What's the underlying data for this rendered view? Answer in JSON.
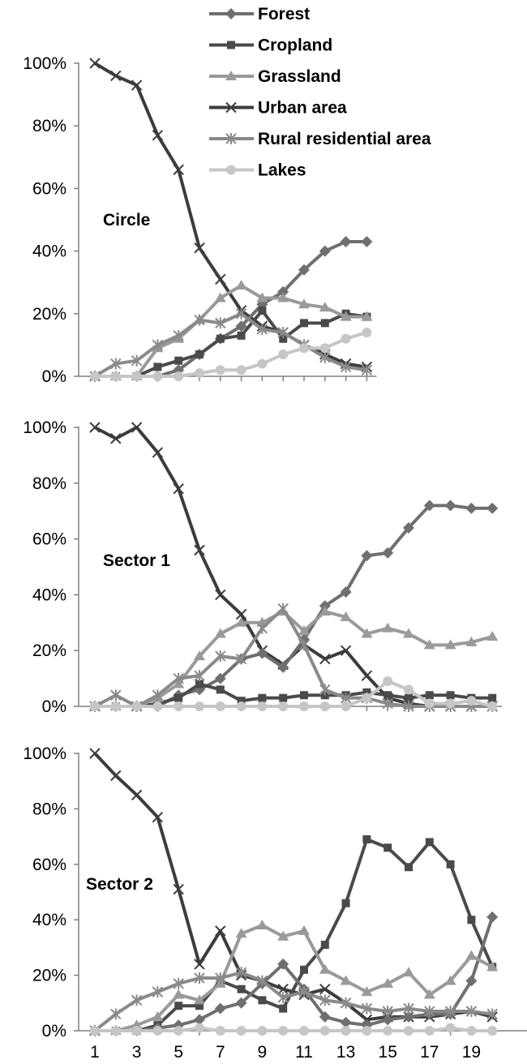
{
  "legend": {
    "items": [
      {
        "label": "Forest",
        "color": "#6f6f6f",
        "marker": "diamond"
      },
      {
        "label": "Cropland",
        "color": "#4a4a4a",
        "marker": "square"
      },
      {
        "label": "Grassland",
        "color": "#9a9a9a",
        "marker": "triangle"
      },
      {
        "label": "Urban area",
        "color": "#3c3c3c",
        "marker": "x"
      },
      {
        "label": "Rural residential area",
        "color": "#8a8a8a",
        "marker": "asterisk"
      },
      {
        "label": "Lakes",
        "color": "#c6c6c6",
        "marker": "circle"
      }
    ]
  },
  "chart_data": [
    {
      "type": "line",
      "panel_label": "Circle",
      "x": [
        1,
        2,
        3,
        4,
        5,
        6,
        7,
        8,
        9,
        10,
        11,
        12,
        13,
        14
      ],
      "x_tick_labels": [],
      "ylim": [
        0,
        100
      ],
      "y_tick_labels": [
        "0%",
        "20%",
        "40%",
        "60%",
        "80%",
        "100%"
      ],
      "series": [
        {
          "name": "Urban area",
          "values": [
            100,
            96,
            93,
            77,
            66,
            41,
            31,
            21,
            16,
            14,
            10,
            7,
            4,
            3
          ]
        },
        {
          "name": "Forest",
          "values": [
            0,
            0,
            0,
            0,
            2,
            7,
            12,
            16,
            23,
            27,
            34,
            40,
            43,
            43
          ]
        },
        {
          "name": "Cropland",
          "values": [
            0,
            0,
            0,
            3,
            5,
            7,
            12,
            13,
            21,
            12,
            17,
            17,
            20,
            19
          ]
        },
        {
          "name": "Grassland",
          "values": [
            0,
            0,
            0,
            9,
            12,
            18,
            25,
            29,
            25,
            25,
            23,
            22,
            19,
            19
          ]
        },
        {
          "name": "Rural residential area",
          "values": [
            0,
            4,
            5,
            10,
            13,
            18,
            17,
            20,
            15,
            14,
            10,
            6,
            3,
            2
          ]
        },
        {
          "name": "Lakes",
          "values": [
            0,
            0,
            0,
            0,
            0,
            1,
            2,
            2,
            4,
            7,
            9,
            9,
            12,
            14
          ]
        }
      ]
    },
    {
      "type": "line",
      "panel_label": "Sector 1",
      "x": [
        1,
        2,
        3,
        4,
        5,
        6,
        7,
        8,
        9,
        10,
        11,
        12,
        13,
        14,
        15,
        16,
        17,
        18,
        19,
        20
      ],
      "x_tick_labels": [],
      "ylim": [
        0,
        100
      ],
      "y_tick_labels": [
        "0%",
        "20%",
        "40%",
        "60%",
        "80%",
        "100%"
      ],
      "series": [
        {
          "name": "Urban area",
          "values": [
            100,
            96,
            100,
            91,
            78,
            56,
            40,
            33,
            20,
            15,
            22,
            17,
            20,
            11,
            3,
            1,
            0,
            0,
            0,
            0
          ]
        },
        {
          "name": "Forest",
          "values": [
            0,
            0,
            0,
            0,
            4,
            6,
            10,
            17,
            19,
            14,
            24,
            36,
            41,
            54,
            55,
            64,
            72,
            72,
            71,
            71
          ]
        },
        {
          "name": "Cropland",
          "values": [
            0,
            0,
            0,
            1,
            3,
            8,
            6,
            2,
            3,
            3,
            4,
            4,
            4,
            5,
            4,
            3,
            4,
            4,
            3,
            3
          ]
        },
        {
          "name": "Grassland",
          "values": [
            0,
            0,
            0,
            3,
            8,
            18,
            26,
            30,
            30,
            34,
            27,
            34,
            32,
            26,
            28,
            26,
            22,
            22,
            23,
            25
          ]
        },
        {
          "name": "Rural residential area",
          "values": [
            0,
            4,
            0,
            4,
            10,
            11,
            18,
            17,
            28,
            35,
            22,
            6,
            3,
            3,
            1,
            0,
            0,
            0,
            0,
            0
          ]
        },
        {
          "name": "Lakes",
          "values": [
            0,
            0,
            0,
            0,
            0,
            0,
            0,
            0,
            0,
            0,
            0,
            0,
            0,
            3,
            9,
            6,
            1,
            1,
            2,
            0
          ]
        }
      ]
    },
    {
      "type": "line",
      "panel_label": "Sector 2",
      "x": [
        1,
        2,
        3,
        4,
        5,
        6,
        7,
        8,
        9,
        10,
        11,
        12,
        13,
        14,
        15,
        16,
        17,
        18,
        19,
        20
      ],
      "x_tick_labels": [
        "1",
        "3",
        "5",
        "7",
        "9",
        "11",
        "13",
        "15",
        "17",
        "19"
      ],
      "ylim": [
        0,
        100
      ],
      "y_tick_labels": [
        "0%",
        "20%",
        "40%",
        "60%",
        "80%",
        "100%"
      ],
      "series": [
        {
          "name": "Urban area",
          "values": [
            100,
            92,
            85,
            77,
            51,
            24,
            36,
            20,
            18,
            15,
            13,
            15,
            10,
            4,
            5,
            5,
            5,
            6,
            7,
            5
          ]
        },
        {
          "name": "Cropland",
          "values": [
            0,
            0,
            0,
            2,
            9,
            9,
            18,
            15,
            11,
            8,
            22,
            31,
            46,
            69,
            66,
            59,
            68,
            60,
            40,
            23
          ]
        },
        {
          "name": "Forest",
          "values": [
            0,
            0,
            0,
            1,
            2,
            4,
            8,
            10,
            17,
            24,
            15,
            5,
            3,
            2,
            4,
            5,
            6,
            6,
            18,
            41
          ]
        },
        {
          "name": "Grassland",
          "values": [
            0,
            0,
            2,
            5,
            13,
            11,
            17,
            35,
            38,
            34,
            36,
            22,
            18,
            14,
            17,
            21,
            13,
            18,
            27,
            23
          ]
        },
        {
          "name": "Rural residential area",
          "values": [
            0,
            6,
            11,
            14,
            17,
            19,
            19,
            21,
            18,
            12,
            14,
            11,
            10,
            8,
            7,
            8,
            7,
            7,
            7,
            6
          ]
        },
        {
          "name": "Lakes",
          "values": [
            0,
            0,
            0,
            0,
            0,
            1,
            0,
            0,
            0,
            0,
            0,
            0,
            0,
            0,
            0,
            0,
            0,
            1,
            0,
            0
          ]
        }
      ]
    }
  ]
}
